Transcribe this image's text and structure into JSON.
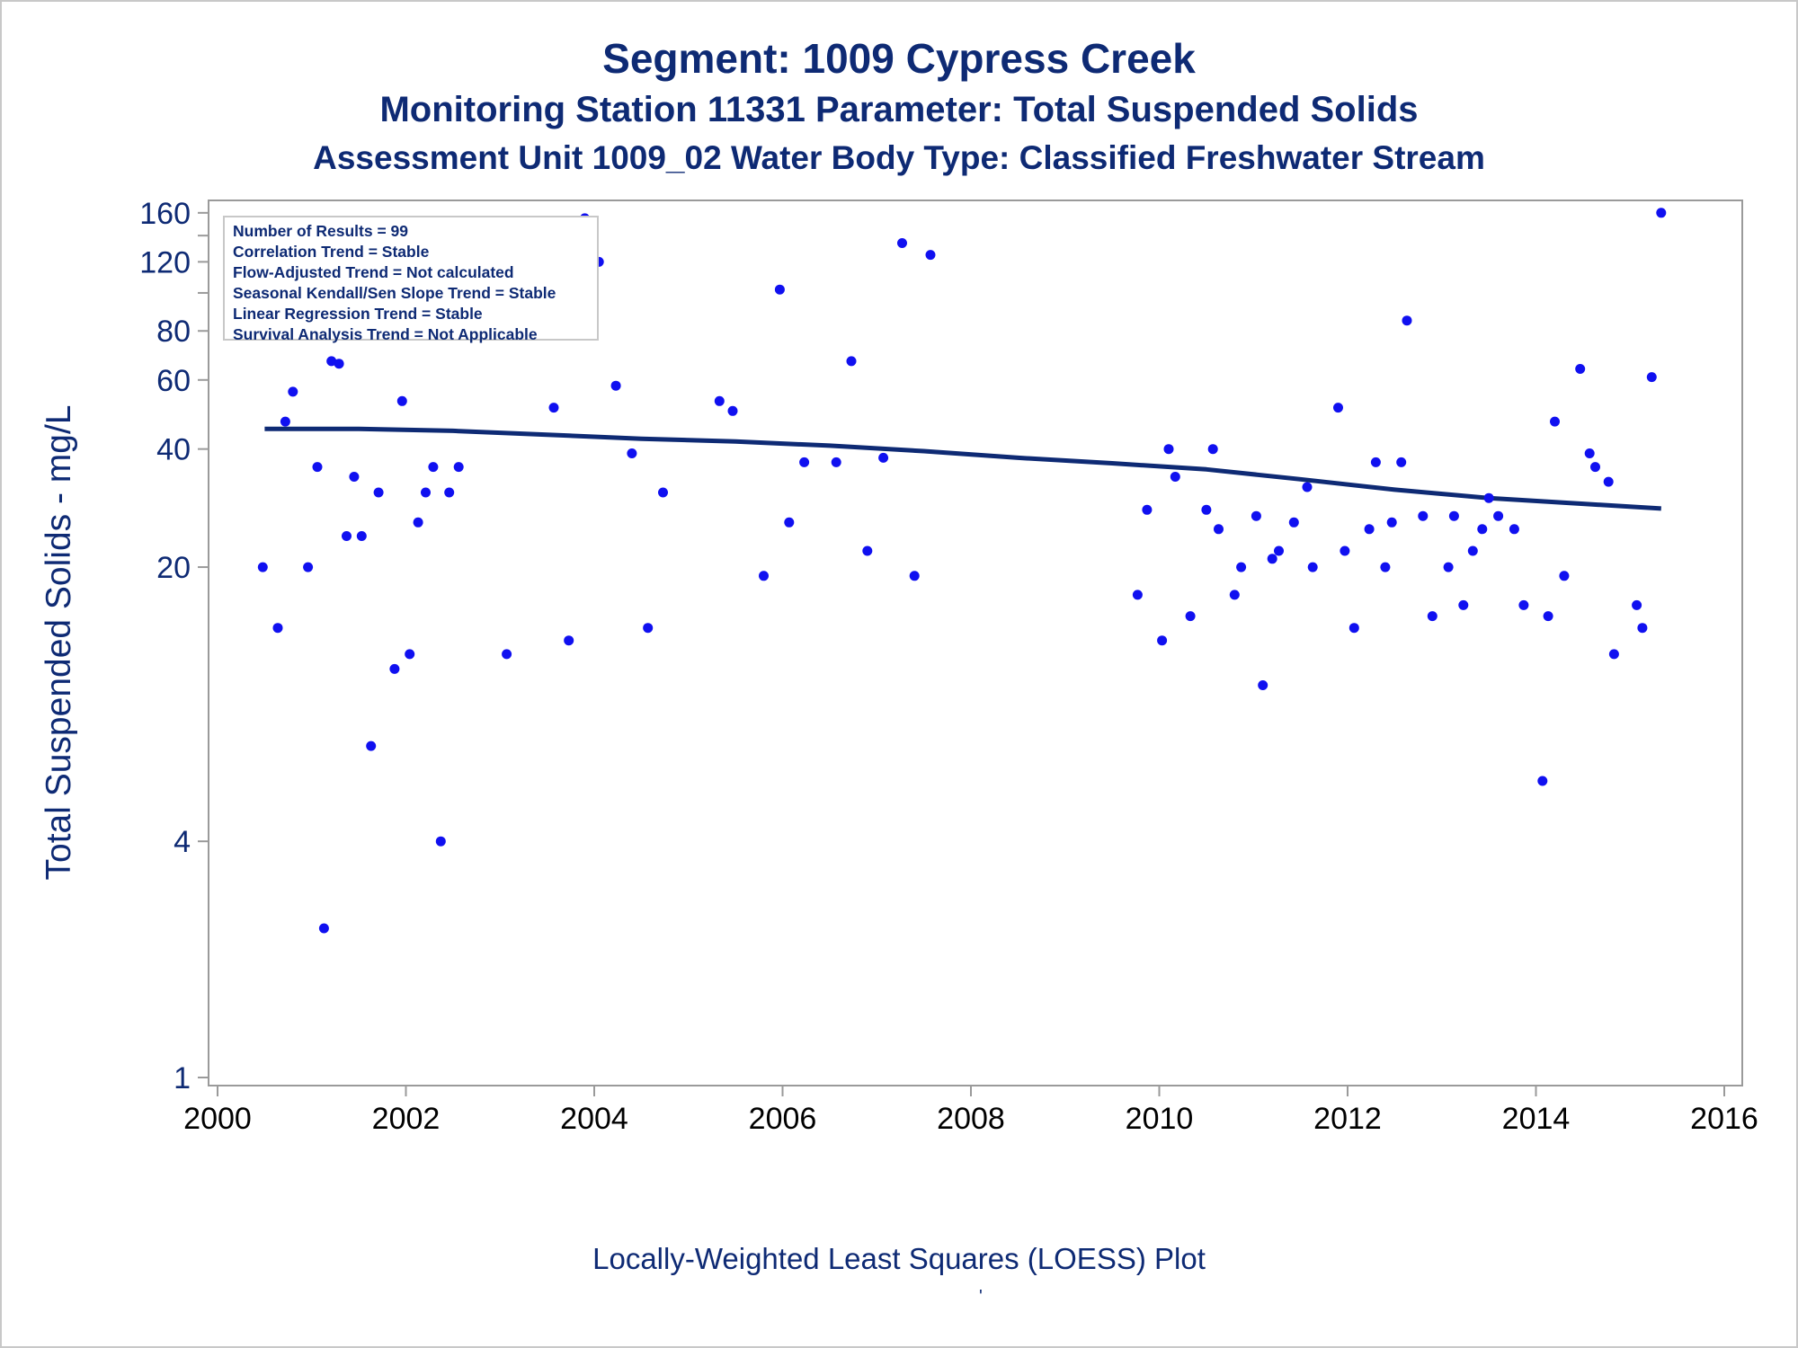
{
  "titles": {
    "line1": "Segment: 1009  Cypress Creek",
    "line2": "Monitoring Station 11331 Parameter: Total Suspended Solids",
    "line3": "Assessment Unit 1009_02   Water Body Type: Classified Freshwater Stream"
  },
  "stats_box": [
    "Number of Results = 99",
    "Correlation Trend = Stable",
    "Flow-Adjusted Trend = Not calculated",
    "Seasonal Kendall/Sen Slope Trend = Stable",
    "Linear Regression Trend = Stable",
    "Survival Analysis Trend = Not Applicable"
  ],
  "footnote": "Locally-Weighted Least Squares (LOESS) Plot",
  "footnote_mark": "'",
  "colors": {
    "points": "#1010f0",
    "loess_line": "#0e2a74",
    "text": "#0e2a74",
    "axis": "#9a9a9a"
  },
  "chart_data": {
    "type": "scatter",
    "xlabel": "",
    "ylabel": "Total Suspended Solids - mg/L",
    "x_scale": "linear (year)",
    "y_scale": "log",
    "xlim": [
      2000,
      2016
    ],
    "ylim": [
      1,
      165
    ],
    "x_ticks": [
      2000,
      2002,
      2004,
      2006,
      2008,
      2010,
      2012,
      2014,
      2016
    ],
    "y_ticks": [
      1,
      4,
      20,
      40,
      60,
      80,
      120,
      160
    ],
    "y_minor_ticks": [
      100,
      140
    ],
    "grid": false,
    "series": [
      {
        "kind": "points",
        "points": [
          [
            2000.48,
            20
          ],
          [
            2000.56,
            84
          ],
          [
            2000.64,
            14
          ],
          [
            2000.72,
            47
          ],
          [
            2000.8,
            56
          ],
          [
            2000.88,
            109
          ],
          [
            2000.96,
            20
          ],
          [
            2001.06,
            36
          ],
          [
            2001.13,
            2.4
          ],
          [
            2001.21,
            67
          ],
          [
            2001.29,
            66
          ],
          [
            2001.37,
            24
          ],
          [
            2001.45,
            34
          ],
          [
            2001.53,
            24
          ],
          [
            2001.63,
            7
          ],
          [
            2001.71,
            31
          ],
          [
            2001.79,
            121
          ],
          [
            2001.88,
            11
          ],
          [
            2001.96,
            53
          ],
          [
            2002.04,
            12
          ],
          [
            2002.13,
            26
          ],
          [
            2002.21,
            31
          ],
          [
            2002.29,
            36
          ],
          [
            2002.37,
            4
          ],
          [
            2002.46,
            31
          ],
          [
            2002.56,
            36
          ],
          [
            2003.07,
            12
          ],
          [
            2003.57,
            51
          ],
          [
            2003.73,
            13
          ],
          [
            2003.9,
            155
          ],
          [
            2004.05,
            120
          ],
          [
            2004.23,
            58
          ],
          [
            2004.4,
            39
          ],
          [
            2004.57,
            14
          ],
          [
            2004.73,
            31
          ],
          [
            2005.33,
            53
          ],
          [
            2005.47,
            50
          ],
          [
            2005.8,
            19
          ],
          [
            2005.97,
            102
          ],
          [
            2006.07,
            26
          ],
          [
            2006.23,
            37
          ],
          [
            2006.57,
            37
          ],
          [
            2006.73,
            67
          ],
          [
            2006.9,
            22
          ],
          [
            2007.07,
            38
          ],
          [
            2007.27,
            134
          ],
          [
            2007.4,
            19
          ],
          [
            2007.57,
            125
          ],
          [
            2009.77,
            17
          ],
          [
            2009.87,
            28
          ],
          [
            2010.03,
            13
          ],
          [
            2010.1,
            40
          ],
          [
            2010.17,
            34
          ],
          [
            2010.33,
            15
          ],
          [
            2010.5,
            28
          ],
          [
            2010.57,
            40
          ],
          [
            2010.63,
            25
          ],
          [
            2010.8,
            17
          ],
          [
            2010.87,
            20
          ],
          [
            2011.03,
            27
          ],
          [
            2011.1,
            10
          ],
          [
            2011.2,
            21
          ],
          [
            2011.27,
            22
          ],
          [
            2011.43,
            26
          ],
          [
            2011.57,
            32
          ],
          [
            2011.63,
            20
          ],
          [
            2011.9,
            51
          ],
          [
            2011.97,
            22
          ],
          [
            2012.07,
            14
          ],
          [
            2012.23,
            25
          ],
          [
            2012.3,
            37
          ],
          [
            2012.4,
            20
          ],
          [
            2012.47,
            26
          ],
          [
            2012.57,
            37
          ],
          [
            2012.63,
            85
          ],
          [
            2012.8,
            27
          ],
          [
            2012.9,
            15
          ],
          [
            2013.07,
            20
          ],
          [
            2013.13,
            27
          ],
          [
            2013.23,
            16
          ],
          [
            2013.33,
            22
          ],
          [
            2013.43,
            25
          ],
          [
            2013.5,
            30
          ],
          [
            2013.6,
            27
          ],
          [
            2013.77,
            25
          ],
          [
            2013.87,
            16
          ],
          [
            2014.07,
            5.7
          ],
          [
            2014.13,
            15
          ],
          [
            2014.2,
            47
          ],
          [
            2014.3,
            19
          ],
          [
            2014.47,
            64
          ],
          [
            2014.57,
            39
          ],
          [
            2014.63,
            36
          ],
          [
            2014.77,
            33
          ],
          [
            2014.83,
            12
          ],
          [
            2015.07,
            16
          ],
          [
            2015.13,
            14
          ],
          [
            2015.23,
            61
          ],
          [
            2015.33,
            160
          ]
        ]
      },
      {
        "kind": "loess_line",
        "points": [
          [
            2000.5,
            45
          ],
          [
            2001.5,
            45
          ],
          [
            2002.5,
            44.5
          ],
          [
            2003.5,
            43.5
          ],
          [
            2004.5,
            42.5
          ],
          [
            2005.5,
            41.8
          ],
          [
            2006.5,
            40.8
          ],
          [
            2007.5,
            39.5
          ],
          [
            2008.5,
            38
          ],
          [
            2009.5,
            36.8
          ],
          [
            2010.5,
            35.5
          ],
          [
            2011.5,
            33.5
          ],
          [
            2012.5,
            31.5
          ],
          [
            2013.5,
            30
          ],
          [
            2014.5,
            29
          ],
          [
            2015.33,
            28.2
          ]
        ]
      }
    ]
  }
}
